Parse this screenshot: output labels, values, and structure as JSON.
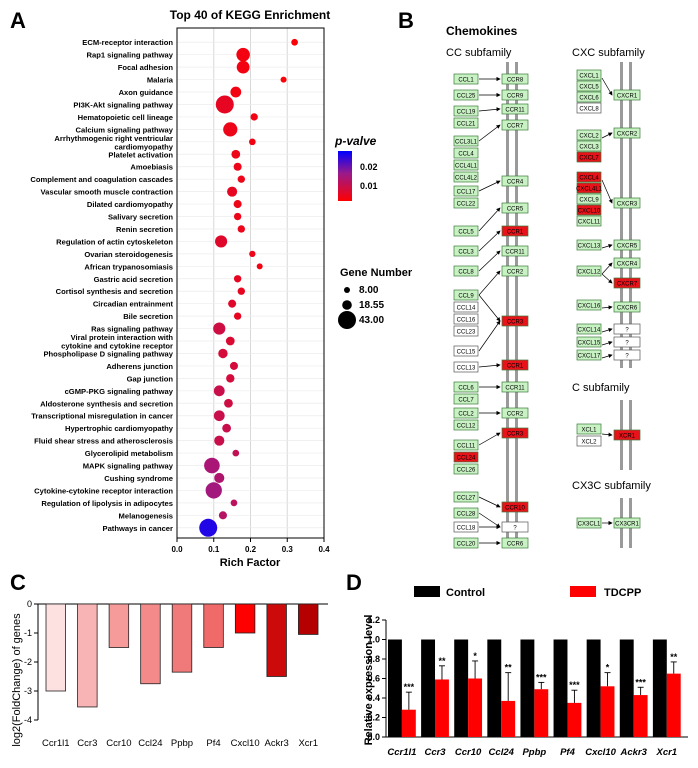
{
  "panels": {
    "A": {
      "label": "A"
    },
    "B": {
      "label": "B"
    },
    "C": {
      "label": "C"
    },
    "D": {
      "label": "D"
    }
  },
  "chart_data": [
    {
      "panel": "A",
      "type": "scatter",
      "title": "Top 40 of KEGG Enrichment",
      "xlabel": "Rich Factor",
      "ylabel": "",
      "xlim": [
        0.0,
        0.4
      ],
      "xticks": [
        "0.0",
        "0.1",
        "0.2",
        "0.3",
        "0.4"
      ],
      "categories": [
        "ECM-receptor interaction",
        "Rap1 signaling pathway",
        "Focal adhesion",
        "Malaria",
        "Axon guidance",
        "PI3K-Akt signaling pathway",
        "Hematopoietic cell lineage",
        "Calcium signaling pathway",
        "Arrhythmogenic right ventricular cardiomyopathy",
        "Platelet activation",
        "Amoebiasis",
        "Complement and coagulation cascades",
        "Vascular smooth muscle contraction",
        "Dilated cardiomyopathy",
        "Salivary secretion",
        "Renin secretion",
        "Regulation of actin cytoskeleton",
        "Ovarian steroidogenesis",
        "African trypanosomiasis",
        "Gastric acid secretion",
        "Cortisol synthesis and secretion",
        "Circadian entrainment",
        "Bile secretion",
        "Ras signaling pathway",
        "Viral protein interaction with cytokine and cytokine receptor",
        "Phospholipase D signaling pathway",
        "Adherens junction",
        "Gap junction",
        "cGMP-PKG signaling pathway",
        "Aldosterone synthesis and secretion",
        "Transcriptional misregulation in cancer",
        "Hypertrophic cardiomyopathy",
        "Fluid shear stress and atherosclerosis",
        "Glycerolipid metabolism",
        "MAPK signaling pathway",
        "Cushing syndrome",
        "Cytokine-cytokine receptor interaction",
        "Regulation of lipolysis in adipocytes",
        "Melanogenesis",
        "Pathways in cancer"
      ],
      "rich_factor": [
        0.32,
        0.18,
        0.18,
        0.29,
        0.16,
        0.13,
        0.21,
        0.145,
        0.205,
        0.16,
        0.165,
        0.175,
        0.15,
        0.165,
        0.165,
        0.175,
        0.12,
        0.205,
        0.225,
        0.165,
        0.175,
        0.15,
        0.165,
        0.115,
        0.145,
        0.125,
        0.155,
        0.145,
        0.115,
        0.14,
        0.115,
        0.135,
        0.115,
        0.16,
        0.095,
        0.115,
        0.1,
        0.155,
        0.125,
        0.085
      ],
      "p_value": [
        0.001,
        0.002,
        0.002,
        0.001,
        0.002,
        0.004,
        0.002,
        0.003,
        0.002,
        0.003,
        0.003,
        0.003,
        0.004,
        0.003,
        0.003,
        0.003,
        0.005,
        0.003,
        0.002,
        0.004,
        0.004,
        0.005,
        0.004,
        0.008,
        0.006,
        0.007,
        0.007,
        0.007,
        0.009,
        0.008,
        0.009,
        0.009,
        0.009,
        0.01,
        0.014,
        0.013,
        0.015,
        0.011,
        0.012,
        0.027
      ],
      "gene_number": [
        10,
        30,
        28,
        8,
        22,
        43,
        12,
        32,
        10,
        16,
        14,
        12,
        20,
        14,
        12,
        12,
        26,
        9,
        8,
        12,
        12,
        14,
        12,
        26,
        16,
        18,
        14,
        15,
        22,
        16,
        22,
        16,
        20,
        10,
        36,
        20,
        38,
        10,
        14,
        43
      ],
      "color_legend": {
        "title": "p-valve",
        "ticks": [
          "0.02",
          "0.01"
        ],
        "range": [
          0.0,
          0.03
        ],
        "colors": [
          "#ff0000",
          "#0000ff"
        ]
      },
      "size_legend": {
        "title": "Gene Number",
        "values": [
          "8.00",
          "18.55",
          "43.00"
        ]
      }
    },
    {
      "panel": "C",
      "type": "bar",
      "title": "",
      "xlabel": "",
      "ylabel": "log2(FoldChange) of genes",
      "ylim": [
        -4,
        0
      ],
      "yticks": [
        "0",
        "-1",
        "-2",
        "-3",
        "-4"
      ],
      "categories": [
        "Ccr1l1",
        "Ccr3",
        "Ccr10",
        "Ccl24",
        "Ppbp",
        "Pf4",
        "Cxcl10",
        "Ackr3",
        "Xcr1"
      ],
      "values": [
        -3.0,
        -3.55,
        -1.5,
        -2.75,
        -2.35,
        -1.5,
        -1.0,
        -2.5,
        -1.05
      ],
      "colors": [
        "#fde0e0",
        "#f8b4b4",
        "#f79a9a",
        "#f48a8a",
        "#f07a7a",
        "#f06a6a",
        "#ff0000",
        "#cc0a0a",
        "#b40000"
      ]
    },
    {
      "panel": "D",
      "type": "bar",
      "title": "",
      "xlabel": "",
      "ylabel": "Relative expression level",
      "ylim": [
        0.0,
        1.2
      ],
      "yticks": [
        "0.0",
        "0.2",
        "0.4",
        "0.6",
        "0.8",
        "1.0",
        "1.2"
      ],
      "categories": [
        "Ccr1l1",
        "Ccr3",
        "Ccr10",
        "Ccl24",
        "Ppbp",
        "Pf4",
        "Cxcl10",
        "Ackr3",
        "Xcr1"
      ],
      "series": [
        {
          "name": "Control",
          "color": "#000000",
          "values": [
            1.0,
            1.0,
            1.0,
            1.0,
            1.0,
            1.0,
            1.0,
            1.0,
            1.0
          ],
          "errors": [
            0,
            0,
            0,
            0,
            0,
            0,
            0,
            0,
            0
          ]
        },
        {
          "name": "TDCPP",
          "color": "#ff0000",
          "values": [
            0.28,
            0.59,
            0.6,
            0.37,
            0.49,
            0.35,
            0.52,
            0.43,
            0.65
          ],
          "errors": [
            0.18,
            0.14,
            0.18,
            0.29,
            0.07,
            0.13,
            0.14,
            0.08,
            0.12
          ]
        }
      ],
      "significance": [
        "***",
        "**",
        "*",
        "**",
        "***",
        "***",
        "*",
        "***",
        "**"
      ]
    }
  ],
  "pathway": {
    "title": "Chemokines",
    "cc": {
      "title": "CC subfamily",
      "ligand_groups": [
        [
          "CCL1"
        ],
        [
          "CCL25"
        ],
        [
          "CCL19",
          "CCL21"
        ],
        [
          "CCL3L1",
          "CCL4",
          "CCL4L1",
          "CCL4L2"
        ],
        [
          "CCL17",
          "CCL22"
        ],
        [
          "CCL5"
        ],
        [
          "CCL3"
        ],
        [
          "CCL8"
        ],
        [
          "CCL9",
          "CCL14",
          "CCL16",
          "CCL23"
        ],
        [
          "CCL15"
        ],
        [
          "CCL13"
        ],
        [
          "CCL6",
          "CCL7"
        ],
        [
          "CCL2",
          "CCL12"
        ],
        [
          "CCL11",
          "CCL24",
          "CCL26"
        ],
        [
          "CCL27"
        ],
        [
          "CCL28"
        ],
        [
          "CCL18"
        ],
        [
          "CCL20"
        ]
      ],
      "receptors": [
        "CCR8",
        "CCR9",
        "CCR11",
        "CCR7",
        "CCR4",
        "CCR5",
        "CCR1",
        "CCR11",
        "CCR2",
        "CCR3",
        "CCR1",
        "CCR11",
        "CCR2",
        "CCR3",
        "CCR10",
        "?",
        "CCR6"
      ],
      "highlighted": [
        "CCL24",
        "CCR1",
        "CCR3",
        "CCR10"
      ]
    },
    "cxc": {
      "title": "CXC subfamily",
      "ligand_groups": [
        [
          "CXCL1",
          "CXCL5",
          "CXCL6",
          "CXCL8"
        ],
        [
          "CXCL2",
          "CXCL3",
          "CXCL7"
        ],
        [
          "CXCL4",
          "CXCL4L1",
          "CXCL9",
          "CXCL10",
          "CXCL11"
        ],
        [
          "CXCL13"
        ],
        [
          "CXCL12"
        ],
        [
          "CXCL16"
        ],
        [
          "CXCL14"
        ],
        [
          "CXCL15"
        ],
        [
          "CXCL17"
        ]
      ],
      "receptors": [
        "CXCR1",
        "CXCR2",
        "CXCR3",
        "CXCR5",
        "CXCR4",
        "CXCR7",
        "CXCR6",
        "?",
        "?",
        "?"
      ],
      "highlighted": [
        "CXCL7",
        "CXCL4",
        "CXCL4L1",
        "CXCL10",
        "CXCR7"
      ]
    },
    "c": {
      "title": "C subfamily",
      "ligands": [
        "XCL1",
        "XCL2"
      ],
      "receptor": "XCR1",
      "highlighted": [
        "XCR1"
      ]
    },
    "cx3c": {
      "title": "CX3C subfamily",
      "ligand": "CX3CL1",
      "receptor": "CX3CR1"
    }
  }
}
